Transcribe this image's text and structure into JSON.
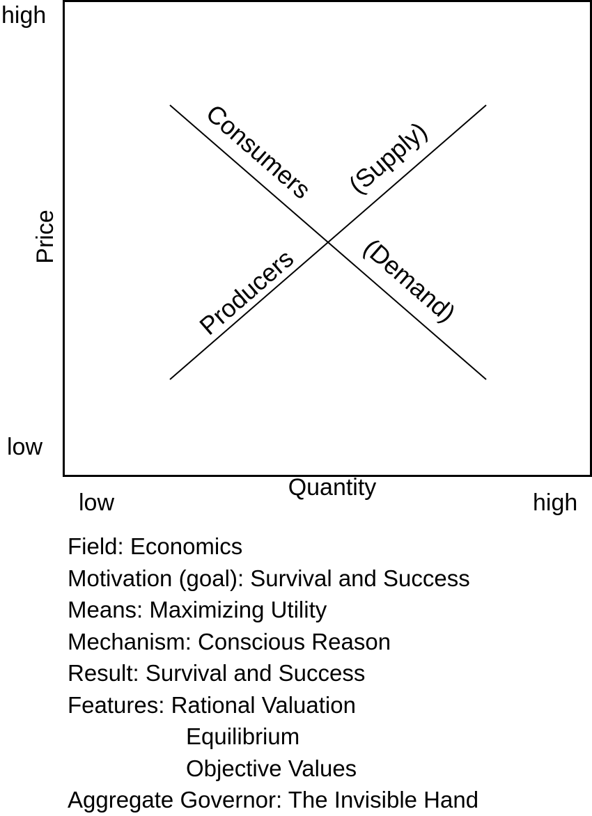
{
  "diagram": {
    "y_axis": {
      "label": "Price",
      "high": "high",
      "low": "low"
    },
    "x_axis": {
      "label": "Quantity",
      "low": "low",
      "high": "high"
    },
    "lines": {
      "demand": {
        "upper_label": "Consumers",
        "lower_label": "(Demand)"
      },
      "supply": {
        "lower_label": "Producers",
        "upper_label": "(Supply)"
      }
    }
  },
  "caption": [
    "Field: Economics",
    "Motivation (goal): Survival and Success",
    "Means: Maximizing Utility",
    "Mechanism: Conscious Reason",
    "Result: Survival and Success",
    "Features: Rational Valuation",
    "Equilibrium",
    "Objective Values",
    "Aggregate Governor: The Invisible Hand"
  ]
}
